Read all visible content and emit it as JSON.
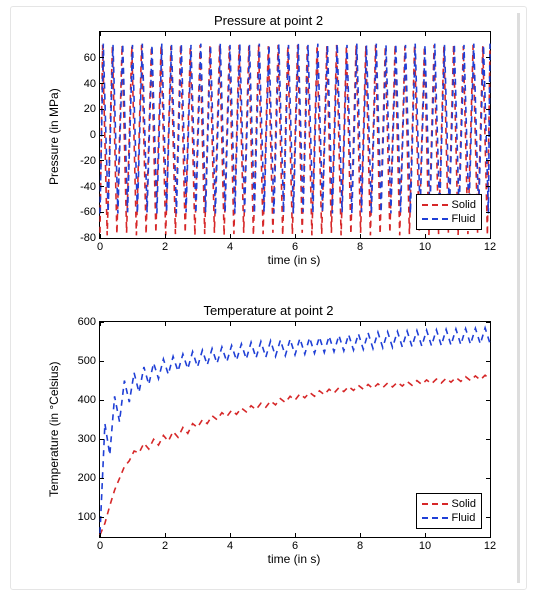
{
  "global": {
    "solid_color": "#d62728",
    "fluid_color": "#1f3fd6",
    "dash": "6,5",
    "line_width": 1.6,
    "bg": "#ffffff"
  },
  "pressure": {
    "type": "line",
    "title": "Pressure at point 2",
    "title_fontsize": 13,
    "xlabel": "time (in s)",
    "ylabel": "Pressure (in MPa)",
    "label_fontsize": 12,
    "xlim": [
      0,
      12
    ],
    "ylim": [
      -80,
      80
    ],
    "xtick_step": 2,
    "ytick_step": 20,
    "xticks": [
      0,
      2,
      4,
      6,
      8,
      10,
      12
    ],
    "yticks": [
      -80,
      -60,
      -40,
      -20,
      0,
      20,
      40,
      60
    ],
    "solid": {
      "x": [
        0,
        0.08,
        0.22,
        0.38,
        0.52,
        0.68,
        0.82,
        0.98,
        1.12,
        1.28,
        1.42,
        1.58,
        1.72,
        1.88,
        2.02,
        2.18,
        2.32,
        2.48,
        2.62,
        2.78,
        2.92,
        3.08,
        3.22,
        3.38,
        3.52,
        3.68,
        3.82,
        3.98,
        4.12,
        4.28,
        4.42,
        4.58,
        4.72,
        4.88,
        5.02,
        5.18,
        5.32,
        5.48,
        5.62,
        5.78,
        5.92,
        6.08,
        6.22,
        6.38,
        6.52,
        6.68,
        6.82,
        6.98,
        7.12,
        7.28,
        7.42,
        7.58,
        7.72,
        7.88,
        8.02,
        8.18,
        8.32,
        8.48,
        8.62,
        8.78,
        8.92,
        9.08,
        9.22,
        9.38,
        9.52,
        9.68,
        9.82,
        9.98,
        10.12,
        10.28,
        10.42,
        10.58,
        10.72,
        10.88,
        11.02,
        11.18,
        11.32,
        11.48,
        11.62,
        11.78,
        11.92,
        12
      ],
      "y": [
        -76,
        70,
        -78,
        69,
        -77,
        70,
        -76,
        69,
        -78,
        70,
        -77,
        69,
        -76,
        70,
        -78,
        69,
        -77,
        70,
        -76,
        69,
        -78,
        70,
        -77,
        69,
        -76,
        70,
        -78,
        69,
        -77,
        70,
        -76,
        69,
        -78,
        70,
        -77,
        69,
        -76,
        70,
        -78,
        69,
        -77,
        70,
        -76,
        69,
        -78,
        70,
        -77,
        69,
        -76,
        70,
        -78,
        69,
        -77,
        70,
        -76,
        69,
        -78,
        70,
        -77,
        69,
        -76,
        70,
        -78,
        69,
        -77,
        70,
        -76,
        69,
        -78,
        70,
        -77,
        69,
        -76,
        70,
        -78,
        69,
        -77,
        70,
        -76,
        69,
        -78,
        70
      ]
    },
    "fluid": {
      "x": [
        0,
        0.1,
        0.25,
        0.4,
        0.55,
        0.7,
        0.85,
        1,
        1.15,
        1.3,
        1.45,
        1.6,
        1.75,
        1.9,
        2.05,
        2.2,
        2.35,
        2.5,
        2.65,
        2.8,
        2.95,
        3.1,
        3.25,
        3.4,
        3.55,
        3.7,
        3.85,
        4,
        4.15,
        4.3,
        4.45,
        4.6,
        4.75,
        4.9,
        5.05,
        5.2,
        5.35,
        5.5,
        5.65,
        5.8,
        5.95,
        6.1,
        6.25,
        6.4,
        6.55,
        6.7,
        6.85,
        7,
        7.15,
        7.3,
        7.45,
        7.6,
        7.75,
        7.9,
        8.05,
        8.2,
        8.35,
        8.5,
        8.65,
        8.8,
        8.95,
        9.1,
        9.25,
        9.4,
        9.55,
        9.7,
        9.85,
        10,
        10.15,
        10.3,
        10.45,
        10.6,
        10.75,
        10.9,
        11.05,
        11.2,
        11.35,
        11.5,
        11.65,
        11.8,
        11.95,
        12
      ],
      "y": [
        -61,
        71,
        -60,
        70,
        -61,
        71,
        -60,
        70,
        -61,
        71,
        -60,
        70,
        -61,
        71,
        -60,
        70,
        -61,
        71,
        -60,
        70,
        -61,
        71,
        -60,
        70,
        -61,
        71,
        -60,
        70,
        -61,
        71,
        -60,
        70,
        -61,
        71,
        -60,
        70,
        -61,
        71,
        -60,
        70,
        -61,
        71,
        -60,
        70,
        -61,
        71,
        -60,
        70,
        -61,
        71,
        -60,
        70,
        -61,
        71,
        -60,
        70,
        -61,
        71,
        -60,
        70,
        -61,
        71,
        -60,
        70,
        -61,
        71,
        -60,
        70,
        -61,
        71,
        -60,
        70,
        -61,
        71,
        -60,
        70,
        -61,
        71,
        -60,
        70,
        -61,
        71
      ]
    },
    "legend": {
      "entries": [
        {
          "label": "Solid",
          "color": "#d62728"
        },
        {
          "label": "Fluid",
          "color": "#1f3fd6"
        }
      ],
      "pos": "lower-right"
    }
  },
  "temperature": {
    "type": "line",
    "title": "Temperature at point 2",
    "title_fontsize": 13,
    "xlabel": "time (in s)",
    "ylabel": "Temperature (in °Celsius)",
    "label_fontsize": 12,
    "xlim": [
      0,
      12
    ],
    "ylim": [
      50,
      600
    ],
    "xtick_step": 2,
    "ytick_step": 100,
    "xticks": [
      0,
      2,
      4,
      6,
      8,
      10,
      12
    ],
    "yticks": [
      100,
      200,
      300,
      400,
      500,
      600
    ],
    "solid": {
      "x": [
        0,
        0.15,
        0.3,
        0.45,
        0.6,
        0.75,
        0.9,
        1.05,
        1.2,
        1.35,
        1.5,
        1.65,
        1.8,
        1.95,
        2.1,
        2.25,
        2.4,
        2.55,
        2.7,
        2.85,
        3,
        3.15,
        3.3,
        3.45,
        3.6,
        3.75,
        3.9,
        4.05,
        4.2,
        4.35,
        4.5,
        4.65,
        4.8,
        4.95,
        5.1,
        5.25,
        5.4,
        5.55,
        5.7,
        5.85,
        6,
        6.15,
        6.3,
        6.45,
        6.6,
        6.75,
        6.9,
        7.05,
        7.2,
        7.35,
        7.5,
        7.65,
        7.8,
        7.95,
        8.1,
        8.25,
        8.4,
        8.55,
        8.7,
        8.85,
        9,
        9.15,
        9.3,
        9.45,
        9.6,
        9.75,
        9.9,
        10.05,
        10.2,
        10.35,
        10.5,
        10.65,
        10.8,
        10.95,
        11.1,
        11.25,
        11.4,
        11.55,
        11.7,
        11.85,
        12
      ],
      "y": [
        55,
        85,
        130,
        170,
        200,
        230,
        245,
        270,
        265,
        290,
        275,
        300,
        285,
        310,
        295,
        320,
        305,
        330,
        315,
        340,
        330,
        350,
        340,
        360,
        350,
        368,
        358,
        374,
        364,
        380,
        370,
        386,
        376,
        392,
        382,
        398,
        388,
        404,
        394,
        410,
        400,
        416,
        406,
        420,
        410,
        424,
        414,
        428,
        418,
        432,
        422,
        435,
        425,
        438,
        428,
        440,
        430,
        442,
        432,
        444,
        434,
        446,
        436,
        448,
        438,
        450,
        440,
        452,
        442,
        454,
        444,
        456,
        446,
        458,
        448,
        460,
        450,
        462,
        452,
        464,
        454
      ]
    },
    "fluid": {
      "x": [
        0,
        0.15,
        0.3,
        0.45,
        0.6,
        0.75,
        0.9,
        1.05,
        1.2,
        1.35,
        1.5,
        1.65,
        1.8,
        1.95,
        2.1,
        2.25,
        2.4,
        2.55,
        2.7,
        2.85,
        3,
        3.15,
        3.3,
        3.45,
        3.6,
        3.75,
        3.9,
        4.05,
        4.2,
        4.35,
        4.5,
        4.65,
        4.8,
        4.95,
        5.1,
        5.25,
        5.4,
        5.55,
        5.7,
        5.85,
        6,
        6.15,
        6.3,
        6.45,
        6.6,
        6.75,
        6.9,
        7.05,
        7.2,
        7.35,
        7.5,
        7.65,
        7.8,
        7.95,
        8.1,
        8.25,
        8.4,
        8.55,
        8.7,
        8.85,
        9,
        9.15,
        9.3,
        9.45,
        9.6,
        9.75,
        9.9,
        10.05,
        10.2,
        10.35,
        10.5,
        10.65,
        10.8,
        10.95,
        11.1,
        11.25,
        11.4,
        11.55,
        11.7,
        11.85,
        12
      ],
      "y": [
        60,
        340,
        260,
        410,
        345,
        450,
        395,
        470,
        420,
        485,
        440,
        495,
        455,
        505,
        466,
        512,
        474,
        518,
        480,
        524,
        485,
        528,
        490,
        532,
        494,
        536,
        498,
        540,
        502,
        544,
        505,
        548,
        508,
        550,
        510,
        552,
        512,
        554,
        514,
        556,
        516,
        558,
        518,
        560,
        520,
        562,
        522,
        564,
        524,
        566,
        526,
        568,
        528,
        570,
        530,
        572,
        532,
        574,
        534,
        575,
        535,
        576,
        536,
        577,
        537,
        578,
        538,
        579,
        539,
        580,
        540,
        581,
        541,
        582,
        542,
        583,
        543,
        584,
        544,
        585,
        545
      ]
    },
    "legend": {
      "entries": [
        {
          "label": "Solid",
          "color": "#d62728"
        },
        {
          "label": "Fluid",
          "color": "#1f3fd6"
        }
      ],
      "pos": "lower-right"
    }
  }
}
